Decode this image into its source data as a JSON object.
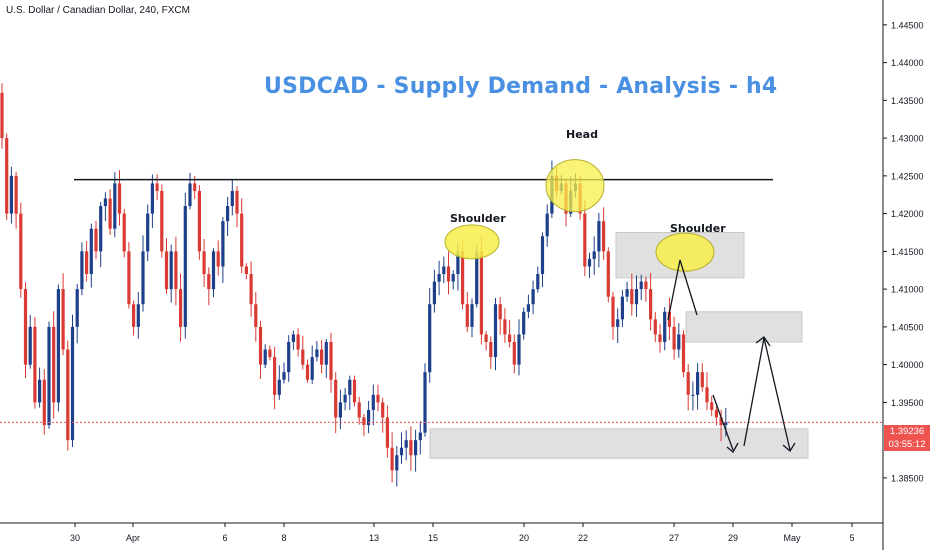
{
  "header": {
    "symbol_line": "U.S. Dollar / Canadian Dollar, 240, FXCM"
  },
  "chart_title": "USDCAD - Supply Demand - Analysis - h4",
  "annotations": {
    "head": "Head",
    "left_shoulder": "Shoulder",
    "right_shoulder": "Shoulder"
  },
  "price_axis": {
    "ticks": [
      "1.44500",
      "1.44000",
      "1.43500",
      "1.43000",
      "1.42500",
      "1.42000",
      "1.41500",
      "1.41000",
      "1.40500",
      "1.40000",
      "1.39500",
      "1.38500"
    ],
    "current_price": "1.39236",
    "countdown": "03:55:12"
  },
  "time_axis": {
    "labels": [
      "30",
      "Apr",
      "6",
      "8",
      "13",
      "15",
      "20",
      "22",
      "27",
      "29",
      "May",
      "5"
    ]
  },
  "colors": {
    "bull": "#1e3f8a",
    "bear": "#d93a34",
    "title": "#4a90e2",
    "marker": "#f7ef4a",
    "zone": "#e0e0e0",
    "price_line": "#ef5350"
  },
  "chart_data": {
    "type": "candlestick",
    "title": "USDCAD - Supply Demand - Analysis - h4",
    "symbol": "U.S. Dollar / Canadian Dollar",
    "timeframe": "240",
    "ylim": [
      1.383,
      1.4467
    ],
    "current_price": 1.39236,
    "neckline_level": 1.4245,
    "supply_zones": [
      [
        1.4115,
        1.4175
      ],
      [
        1.403,
        1.407
      ]
    ],
    "demand_zone": [
      1.3876,
      1.3915
    ],
    "closes": [
      1.43,
      1.42,
      1.425,
      1.42,
      1.41,
      1.4,
      1.405,
      1.395,
      1.398,
      1.392,
      1.405,
      1.395,
      1.41,
      1.402,
      1.39,
      1.405,
      1.41,
      1.415,
      1.412,
      1.418,
      1.415,
      1.421,
      1.422,
      1.418,
      1.424,
      1.42,
      1.415,
      1.408,
      1.405,
      1.408,
      1.415,
      1.42,
      1.424,
      1.423,
      1.415,
      1.41,
      1.415,
      1.41,
      1.405,
      1.421,
      1.424,
      1.423,
      1.415,
      1.412,
      1.41,
      1.415,
      1.413,
      1.419,
      1.421,
      1.423,
      1.42,
      1.413,
      1.412,
      1.408,
      1.405,
      1.4,
      1.402,
      1.401,
      1.396,
      1.398,
      1.399,
      1.403,
      1.404,
      1.402,
      1.4,
      1.398,
      1.401,
      1.402,
      1.4,
      1.403,
      1.398,
      1.393,
      1.395,
      1.396,
      1.398,
      1.395,
      1.393,
      1.392,
      1.394,
      1.396,
      1.395,
      1.393,
      1.389,
      1.386,
      1.388,
      1.389,
      1.39,
      1.388,
      1.39,
      1.391,
      1.399,
      1.408,
      1.411,
      1.412,
      1.413,
      1.411,
      1.412,
      1.415,
      1.408,
      1.405,
      1.408,
      1.415,
      1.404,
      1.403,
      1.401,
      1.408,
      1.406,
      1.404,
      1.403,
      1.4,
      1.404,
      1.407,
      1.408,
      1.41,
      1.412,
      1.417,
      1.42,
      1.425,
      1.423,
      1.424,
      1.42,
      1.423,
      1.424,
      1.42,
      1.413,
      1.414,
      1.415,
      1.419,
      1.415,
      1.409,
      1.405,
      1.406,
      1.409,
      1.41,
      1.408,
      1.41,
      1.411,
      1.41,
      1.406,
      1.404,
      1.403,
      1.407,
      1.405,
      1.402,
      1.404,
      1.399,
      1.396,
      1.396,
      1.399,
      1.397,
      1.395,
      1.394,
      1.393,
      1.392,
      1.3924
    ],
    "points_of_interest": {
      "left_shoulder_price": 1.416,
      "head_price": 1.4245,
      "right_shoulder_price": 1.4145
    }
  }
}
